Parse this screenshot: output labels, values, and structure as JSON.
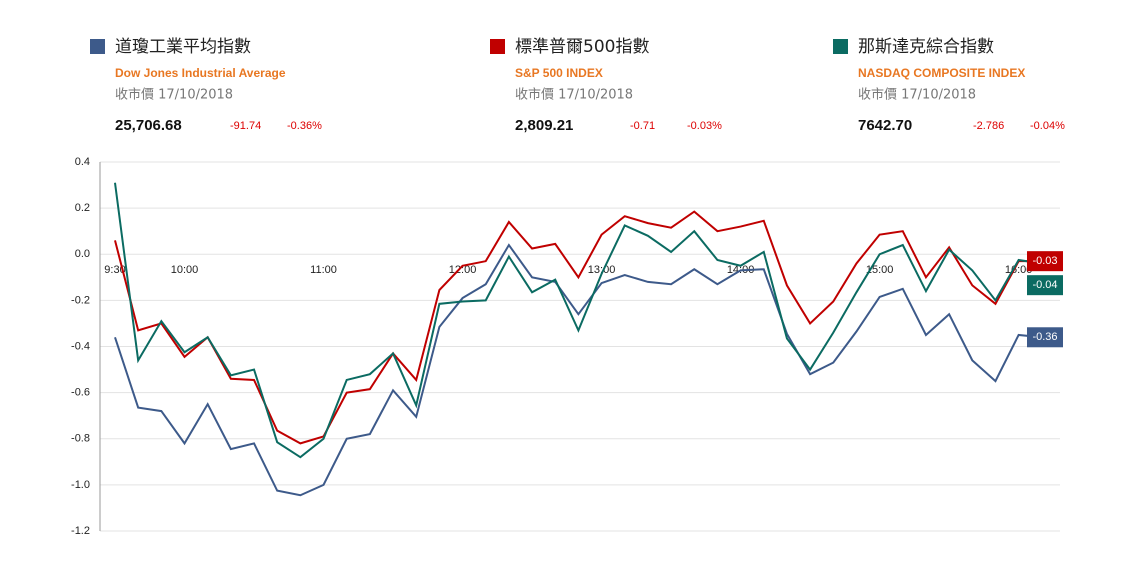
{
  "chart_data": {
    "type": "line",
    "categories": [
      "9:30",
      null,
      null,
      "10:00",
      null,
      null,
      null,
      null,
      null,
      "11:00",
      null,
      null,
      null,
      null,
      null,
      "12:00",
      null,
      null,
      null,
      null,
      null,
      "13:00",
      null,
      null,
      null,
      null,
      null,
      "14:00",
      null,
      null,
      null,
      null,
      null,
      "15:00",
      null,
      null,
      null,
      null,
      null,
      "16:00",
      null
    ],
    "ylim": [
      -1.2,
      0.4
    ],
    "yticks": [
      0.4,
      0.2,
      {
        "value": 0,
        "label": "0.0"
      },
      -0.2,
      -0.4,
      -0.6,
      -0.8,
      {
        "value": -1,
        "label": "-1.0"
      },
      -1.2
    ],
    "grid": true,
    "series": [
      {
        "name": "道瓊工業平均指數",
        "subtitle": "Dow Jones Industrial Average",
        "date_label": "收市價 17/10/2018",
        "close": "25,706.68",
        "change": "-91.74",
        "change_pct": "-0.36%",
        "color": "#3d5a8a",
        "values": [
          -0.36,
          -0.665,
          -0.68,
          -0.82,
          -0.65,
          -0.845,
          -0.82,
          -1.025,
          -1.045,
          -1.0,
          -0.8,
          -0.78,
          -0.59,
          -0.705,
          -0.315,
          -0.19,
          -0.13,
          0.04,
          -0.1,
          -0.12,
          -0.26,
          -0.125,
          -0.09,
          -0.12,
          -0.13,
          -0.065,
          -0.13,
          -0.07,
          -0.065,
          -0.345,
          -0.52,
          -0.47,
          -0.335,
          -0.185,
          -0.15,
          -0.35,
          -0.26,
          -0.46,
          -0.55,
          -0.35,
          -0.36
        ]
      },
      {
        "name": "標準普爾500指數",
        "subtitle": "S&P 500 INDEX",
        "date_label": "收市價 17/10/2018",
        "close": "2,809.21",
        "change": "-0.71",
        "change_pct": "-0.03%",
        "color": "#c00000",
        "values": [
          0.06,
          -0.33,
          -0.3,
          -0.445,
          -0.36,
          -0.54,
          -0.545,
          -0.765,
          -0.82,
          -0.79,
          -0.6,
          -0.585,
          -0.43,
          -0.545,
          -0.155,
          -0.05,
          -0.03,
          0.14,
          0.025,
          0.045,
          -0.1,
          0.085,
          0.165,
          0.135,
          0.115,
          0.185,
          0.1,
          0.12,
          0.145,
          -0.135,
          -0.3,
          -0.205,
          -0.04,
          0.085,
          0.1,
          -0.1,
          0.03,
          -0.135,
          -0.215,
          -0.03,
          -0.03
        ]
      },
      {
        "name": "那斯達克綜合指數",
        "subtitle": "NASDAQ COMPOSITE INDEX",
        "date_label": "收市價 17/10/2018",
        "close": "7642.70",
        "change": "-2.786",
        "change_pct": "-0.04%",
        "color": "#0b6b62",
        "values": [
          0.31,
          -0.46,
          -0.29,
          -0.425,
          -0.36,
          -0.525,
          -0.5,
          -0.815,
          -0.88,
          -0.8,
          -0.545,
          -0.52,
          -0.43,
          -0.655,
          -0.215,
          -0.205,
          -0.2,
          -0.01,
          -0.165,
          -0.11,
          -0.33,
          -0.085,
          0.125,
          0.08,
          0.01,
          0.1,
          -0.025,
          -0.05,
          0.01,
          -0.365,
          -0.5,
          -0.34,
          -0.165,
          0.0,
          0.04,
          -0.16,
          0.02,
          -0.07,
          -0.2,
          -0.025,
          -0.04
        ]
      }
    ]
  }
}
